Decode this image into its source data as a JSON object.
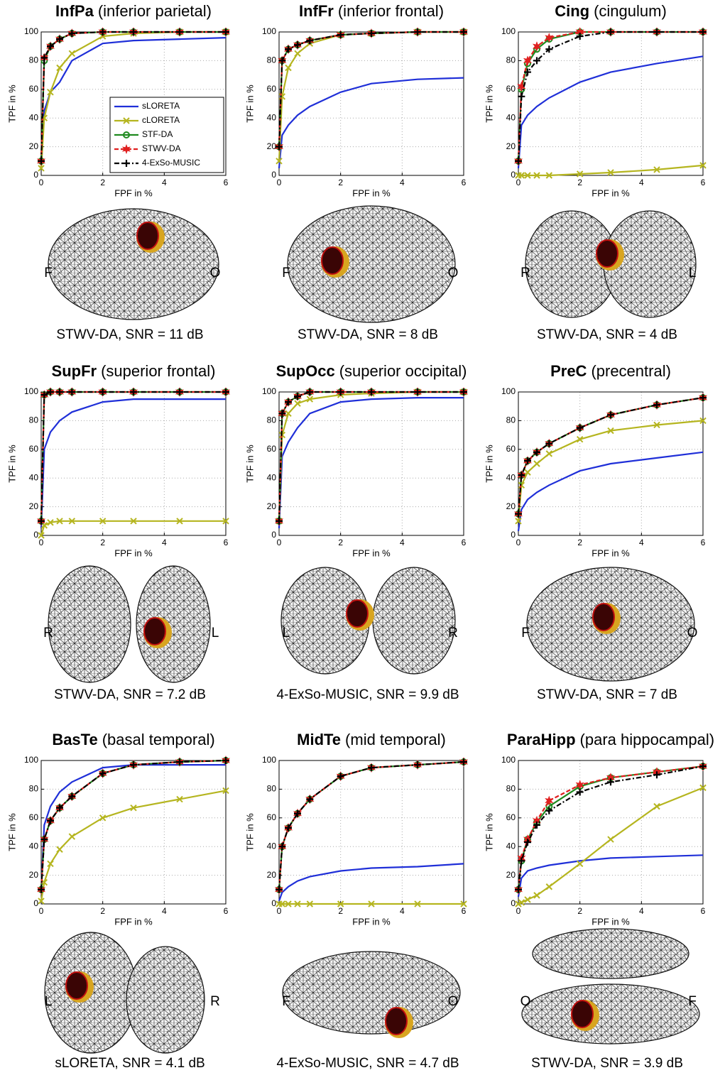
{
  "chart_data": [
    {
      "type": "line",
      "title_bold": "InfPa",
      "title": "(inferior parietal)",
      "x_label": "FPF in %",
      "y_label": "TPF in %",
      "x": [
        0,
        0.1,
        0.3,
        0.6,
        1,
        2,
        3,
        4.5,
        6
      ],
      "xlim": [
        0,
        6
      ],
      "ylim": [
        0,
        100
      ],
      "xticks": [
        0,
        2,
        4,
        6
      ],
      "yticks": [
        0,
        20,
        40,
        60,
        80,
        100
      ],
      "grid": true,
      "legend": "lower right",
      "series": [
        {
          "name": "sLORETA",
          "color": "#1f2fd8",
          "marker": "none",
          "linestyle": "solid",
          "values": [
            5,
            45,
            58,
            65,
            80,
            92,
            94,
            95,
            96
          ]
        },
        {
          "name": "cLORETA",
          "color": "#b5b51f",
          "marker": "x",
          "linestyle": "solid",
          "values": [
            5,
            40,
            58,
            75,
            85,
            97,
            99,
            100,
            100
          ]
        },
        {
          "name": "STF-DA",
          "color": "#1f8a1f",
          "marker": "circle",
          "linestyle": "solid",
          "values": [
            10,
            80,
            90,
            95,
            99,
            100,
            100,
            100,
            100
          ]
        },
        {
          "name": "STWV-DA",
          "color": "#e01f1f",
          "marker": "star",
          "linestyle": "dashed",
          "values": [
            10,
            82,
            90,
            95,
            99,
            100,
            100,
            100,
            100
          ]
        },
        {
          "name": "4-ExSo-MUSIC",
          "color": "#000000",
          "marker": "plus",
          "linestyle": "dashdot",
          "values": [
            10,
            82,
            90,
            95,
            99,
            100,
            100,
            100,
            100
          ]
        }
      ],
      "view_labels": [
        "F",
        "O"
      ],
      "caption": "STWV-DA, SNR = 11 dB"
    },
    {
      "type": "line",
      "title_bold": "InfFr",
      "title": "(inferior frontal)",
      "x_label": "FPF in %",
      "y_label": "TPF in %",
      "x": [
        0,
        0.1,
        0.3,
        0.6,
        1,
        2,
        3,
        4.5,
        6
      ],
      "xlim": [
        0,
        6
      ],
      "ylim": [
        0,
        100
      ],
      "xticks": [
        0,
        2,
        4,
        6
      ],
      "yticks": [
        0,
        20,
        40,
        60,
        80,
        100
      ],
      "grid": true,
      "series": [
        {
          "color": "#1f2fd8",
          "marker": "none",
          "linestyle": "solid",
          "values": [
            5,
            28,
            35,
            42,
            48,
            58,
            64,
            67,
            68
          ]
        },
        {
          "color": "#b5b51f",
          "marker": "x",
          "linestyle": "solid",
          "values": [
            10,
            55,
            75,
            85,
            92,
            98,
            99,
            100,
            100
          ]
        },
        {
          "color": "#1f8a1f",
          "marker": "circle",
          "linestyle": "solid",
          "values": [
            20,
            80,
            88,
            91,
            94,
            98,
            99,
            100,
            100
          ]
        },
        {
          "color": "#e01f1f",
          "marker": "star",
          "linestyle": "dashed",
          "values": [
            20,
            80,
            88,
            91,
            94,
            98,
            99,
            100,
            100
          ]
        },
        {
          "color": "#000000",
          "marker": "plus",
          "linestyle": "dashdot",
          "values": [
            20,
            80,
            88,
            91,
            94,
            98,
            99,
            100,
            100
          ]
        }
      ],
      "view_labels": [
        "F",
        "O"
      ],
      "caption": "STWV-DA, SNR = 8 dB"
    },
    {
      "type": "line",
      "title_bold": "Cing",
      "title": "(cingulum)",
      "x_label": "FPF in %",
      "y_label": "TPF in %",
      "x": [
        0,
        0.1,
        0.3,
        0.6,
        1,
        2,
        3,
        4.5,
        6
      ],
      "xlim": [
        0,
        6
      ],
      "ylim": [
        0,
        100
      ],
      "xticks": [
        0,
        2,
        4,
        6
      ],
      "yticks": [
        0,
        20,
        40,
        60,
        80,
        100
      ],
      "grid": true,
      "series": [
        {
          "color": "#1f2fd8",
          "marker": "none",
          "linestyle": "solid",
          "values": [
            5,
            35,
            42,
            48,
            54,
            65,
            72,
            78,
            83
          ]
        },
        {
          "color": "#b5b51f",
          "marker": "x",
          "linestyle": "solid",
          "values": [
            0,
            0,
            0,
            0,
            0,
            1,
            2,
            4,
            7
          ]
        },
        {
          "color": "#1f8a1f",
          "marker": "circle",
          "linestyle": "solid",
          "values": [
            10,
            60,
            78,
            88,
            95,
            100,
            100,
            100,
            100
          ]
        },
        {
          "color": "#e01f1f",
          "marker": "star",
          "linestyle": "dashed",
          "values": [
            10,
            62,
            80,
            90,
            96,
            100,
            100,
            100,
            100
          ]
        },
        {
          "color": "#000000",
          "marker": "plus",
          "linestyle": "dashdot",
          "values": [
            10,
            55,
            72,
            80,
            88,
            97,
            100,
            100,
            100
          ]
        }
      ],
      "view_labels": [
        "R",
        "L"
      ],
      "caption": "STWV-DA, SNR = 4 dB"
    },
    {
      "type": "line",
      "title_bold": "SupFr",
      "title": "(superior frontal)",
      "x_label": "FPF in %",
      "y_label": "TPF in %",
      "x": [
        0,
        0.1,
        0.3,
        0.6,
        1,
        2,
        3,
        4.5,
        6
      ],
      "xlim": [
        0,
        6
      ],
      "ylim": [
        0,
        100
      ],
      "xticks": [
        0,
        2,
        4,
        6
      ],
      "yticks": [
        0,
        20,
        40,
        60,
        80,
        100
      ],
      "grid": true,
      "series": [
        {
          "color": "#1f2fd8",
          "marker": "none",
          "linestyle": "solid",
          "values": [
            5,
            60,
            72,
            80,
            86,
            93,
            95,
            95,
            95
          ]
        },
        {
          "color": "#b5b51f",
          "marker": "x",
          "linestyle": "solid",
          "values": [
            0,
            7,
            9,
            10,
            10,
            10,
            10,
            10,
            10
          ]
        },
        {
          "color": "#1f8a1f",
          "marker": "circle",
          "linestyle": "solid",
          "values": [
            10,
            98,
            100,
            100,
            100,
            100,
            100,
            100,
            100
          ]
        },
        {
          "color": "#e01f1f",
          "marker": "star",
          "linestyle": "dashed",
          "values": [
            10,
            98,
            100,
            100,
            100,
            100,
            100,
            100,
            100
          ]
        },
        {
          "color": "#000000",
          "marker": "plus",
          "linestyle": "dashdot",
          "values": [
            10,
            98,
            100,
            100,
            100,
            100,
            100,
            100,
            100
          ]
        }
      ],
      "view_labels": [
        "R",
        "L"
      ],
      "caption": "STWV-DA, SNR = 7.2 dB"
    },
    {
      "type": "line",
      "title_bold": "SupOcc",
      "title": "(superior occipital)",
      "x_label": "FPF in %",
      "y_label": "TPF in %",
      "x": [
        0,
        0.1,
        0.3,
        0.6,
        1,
        2,
        3,
        4.5,
        6
      ],
      "xlim": [
        0,
        6
      ],
      "ylim": [
        0,
        100
      ],
      "xticks": [
        0,
        2,
        4,
        6
      ],
      "yticks": [
        0,
        20,
        40,
        60,
        80,
        100
      ],
      "grid": true,
      "series": [
        {
          "color": "#1f2fd8",
          "marker": "none",
          "linestyle": "solid",
          "values": [
            5,
            55,
            65,
            75,
            85,
            93,
            95,
            96,
            96
          ]
        },
        {
          "color": "#b5b51f",
          "marker": "x",
          "linestyle": "solid",
          "values": [
            10,
            70,
            85,
            92,
            95,
            98,
            99,
            100,
            100
          ]
        },
        {
          "color": "#1f8a1f",
          "marker": "circle",
          "linestyle": "solid",
          "values": [
            10,
            85,
            93,
            97,
            100,
            100,
            100,
            100,
            100
          ]
        },
        {
          "color": "#e01f1f",
          "marker": "star",
          "linestyle": "dashed",
          "values": [
            10,
            85,
            93,
            97,
            100,
            100,
            100,
            100,
            100
          ]
        },
        {
          "color": "#000000",
          "marker": "plus",
          "linestyle": "dashdot",
          "values": [
            10,
            85,
            93,
            97,
            100,
            100,
            100,
            100,
            100
          ]
        }
      ],
      "view_labels": [
        "L",
        "R"
      ],
      "caption": "4-ExSo-MUSIC, SNR = 9.9 dB"
    },
    {
      "type": "line",
      "title_bold": "PreC",
      "title": "(precentral)",
      "x_label": "FPF in %",
      "y_label": "TPF in %",
      "x": [
        0,
        0.1,
        0.3,
        0.6,
        1,
        2,
        3,
        4.5,
        6
      ],
      "xlim": [
        0,
        6
      ],
      "ylim": [
        0,
        100
      ],
      "xticks": [
        0,
        2,
        4,
        6
      ],
      "yticks": [
        0,
        20,
        40,
        60,
        80,
        100
      ],
      "grid": true,
      "series": [
        {
          "color": "#1f2fd8",
          "marker": "none",
          "linestyle": "solid",
          "values": [
            3,
            18,
            25,
            30,
            35,
            45,
            50,
            54,
            58
          ]
        },
        {
          "color": "#b5b51f",
          "marker": "x",
          "linestyle": "solid",
          "values": [
            10,
            35,
            44,
            50,
            57,
            67,
            73,
            77,
            80
          ]
        },
        {
          "color": "#1f8a1f",
          "marker": "circle",
          "linestyle": "solid",
          "values": [
            15,
            42,
            52,
            58,
            64,
            75,
            84,
            91,
            96
          ]
        },
        {
          "color": "#e01f1f",
          "marker": "star",
          "linestyle": "dashed",
          "values": [
            15,
            42,
            52,
            58,
            64,
            75,
            84,
            91,
            96
          ]
        },
        {
          "color": "#000000",
          "marker": "plus",
          "linestyle": "dashdot",
          "values": [
            15,
            42,
            52,
            58,
            64,
            75,
            84,
            91,
            96
          ]
        }
      ],
      "view_labels": [
        "F",
        "O"
      ],
      "caption": "STWV-DA, SNR = 7 dB"
    },
    {
      "type": "line",
      "title_bold": "BasTe",
      "title": "(basal temporal)",
      "x_label": "FPF in %",
      "y_label": "TPF in %",
      "x": [
        0,
        0.1,
        0.3,
        0.6,
        1,
        2,
        3,
        4.5,
        6
      ],
      "xlim": [
        0,
        6
      ],
      "ylim": [
        0,
        100
      ],
      "xticks": [
        0,
        2,
        4,
        6
      ],
      "yticks": [
        0,
        20,
        40,
        60,
        80,
        100
      ],
      "grid": true,
      "series": [
        {
          "color": "#1f2fd8",
          "marker": "none",
          "linestyle": "solid",
          "values": [
            10,
            55,
            68,
            78,
            85,
            95,
            97,
            97,
            97
          ]
        },
        {
          "color": "#b5b51f",
          "marker": "x",
          "linestyle": "solid",
          "values": [
            2,
            15,
            28,
            38,
            47,
            60,
            67,
            73,
            79
          ]
        },
        {
          "color": "#1f8a1f",
          "marker": "circle",
          "linestyle": "solid",
          "values": [
            10,
            45,
            58,
            67,
            75,
            91,
            97,
            99,
            100
          ]
        },
        {
          "color": "#e01f1f",
          "marker": "star",
          "linestyle": "dashed",
          "values": [
            10,
            45,
            58,
            67,
            75,
            91,
            97,
            99,
            100
          ]
        },
        {
          "color": "#000000",
          "marker": "plus",
          "linestyle": "dashdot",
          "values": [
            10,
            45,
            58,
            67,
            75,
            91,
            97,
            99,
            100
          ]
        }
      ],
      "view_labels": [
        "L",
        "R"
      ],
      "caption": "sLORETA, SNR = 4.1 dB"
    },
    {
      "type": "line",
      "title_bold": "MidTe",
      "title": "(mid temporal)",
      "x_label": "FPF in %",
      "y_label": "TPF in %",
      "x": [
        0,
        0.1,
        0.3,
        0.6,
        1,
        2,
        3,
        4.5,
        6
      ],
      "xlim": [
        0,
        6
      ],
      "ylim": [
        0,
        100
      ],
      "xticks": [
        0,
        2,
        4,
        6
      ],
      "yticks": [
        0,
        20,
        40,
        60,
        80,
        100
      ],
      "grid": true,
      "series": [
        {
          "color": "#1f2fd8",
          "marker": "none",
          "linestyle": "solid",
          "values": [
            2,
            8,
            12,
            16,
            19,
            23,
            25,
            26,
            28
          ]
        },
        {
          "color": "#b5b51f",
          "marker": "x",
          "linestyle": "solid",
          "values": [
            0,
            0,
            0,
            0,
            0,
            0,
            0,
            0,
            0
          ]
        },
        {
          "color": "#1f8a1f",
          "marker": "circle",
          "linestyle": "solid",
          "values": [
            10,
            40,
            53,
            63,
            73,
            89,
            95,
            97,
            99
          ]
        },
        {
          "color": "#e01f1f",
          "marker": "star",
          "linestyle": "dashed",
          "values": [
            10,
            40,
            53,
            63,
            73,
            89,
            95,
            97,
            99
          ]
        },
        {
          "color": "#000000",
          "marker": "plus",
          "linestyle": "dashdot",
          "values": [
            10,
            40,
            53,
            63,
            73,
            89,
            95,
            97,
            99
          ]
        }
      ],
      "view_labels": [
        "F",
        "O"
      ],
      "caption": "4-ExSo-MUSIC, SNR = 4.7 dB"
    },
    {
      "type": "line",
      "title_bold": "ParaHipp",
      "title": "(para hippocampal)",
      "x_label": "FPF in %",
      "y_label": "TPF in %",
      "x": [
        0,
        0.1,
        0.3,
        0.6,
        1,
        2,
        3,
        4.5,
        6
      ],
      "xlim": [
        0,
        6
      ],
      "ylim": [
        0,
        100
      ],
      "xticks": [
        0,
        2,
        4,
        6
      ],
      "yticks": [
        0,
        20,
        40,
        60,
        80,
        100
      ],
      "grid": true,
      "series": [
        {
          "color": "#1f2fd8",
          "marker": "none",
          "linestyle": "solid",
          "values": [
            5,
            18,
            23,
            25,
            27,
            30,
            32,
            33,
            34
          ]
        },
        {
          "color": "#b5b51f",
          "marker": "x",
          "linestyle": "solid",
          "values": [
            0,
            1,
            3,
            6,
            12,
            28,
            45,
            68,
            81
          ]
        },
        {
          "color": "#1f8a1f",
          "marker": "circle",
          "linestyle": "solid",
          "values": [
            10,
            30,
            45,
            57,
            68,
            82,
            88,
            92,
            96
          ]
        },
        {
          "color": "#e01f1f",
          "marker": "star",
          "linestyle": "dashed",
          "values": [
            10,
            32,
            45,
            58,
            72,
            83,
            88,
            92,
            96
          ]
        },
        {
          "color": "#000000",
          "marker": "plus",
          "linestyle": "dashdot",
          "values": [
            10,
            30,
            43,
            55,
            65,
            78,
            85,
            90,
            96
          ]
        }
      ],
      "view_labels": [
        "O",
        "F"
      ],
      "caption": "STWV-DA, SNR = 3.9 dB"
    }
  ]
}
